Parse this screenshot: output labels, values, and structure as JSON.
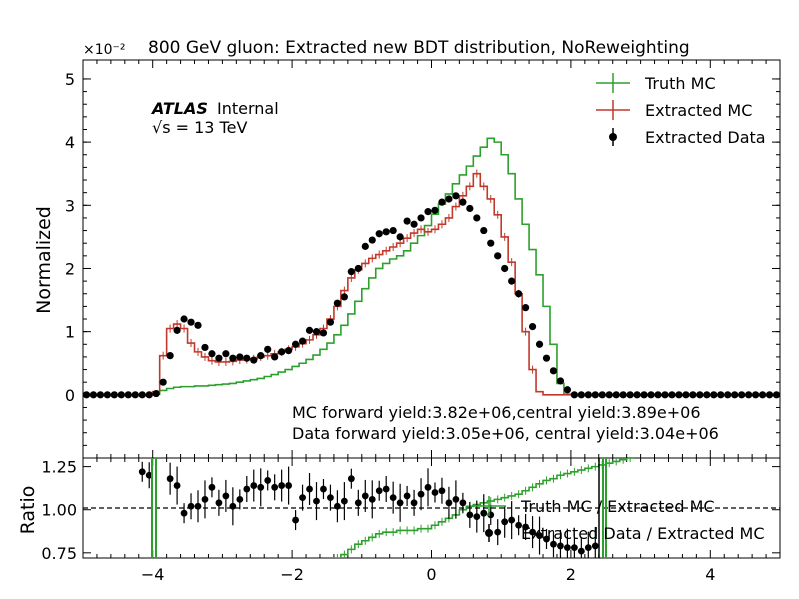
{
  "chart_data": [
    {
      "type": "histogram",
      "title": "800 GeV gluon: Extracted new BDT distribution, NoReweighting",
      "ylabel": "Normalized",
      "y_multiplier_label": "×10⁻²",
      "xlim": [
        -5,
        5
      ],
      "ylim": [
        -1,
        5.3
      ],
      "bin_edges": [
        -5.0,
        -4.9,
        -4.8,
        -4.7,
        -4.6,
        -4.5,
        -4.4,
        -4.3,
        -4.2,
        -4.1,
        -4.0,
        -3.9,
        -3.8,
        -3.7,
        -3.6,
        -3.5,
        -3.4,
        -3.3,
        -3.2,
        -3.1,
        -3.0,
        -2.9,
        -2.8,
        -2.7,
        -2.6,
        -2.5,
        -2.4,
        -2.3,
        -2.2,
        -2.1,
        -2.0,
        -1.9,
        -1.8,
        -1.7,
        -1.6,
        -1.5,
        -1.4,
        -1.3,
        -1.2,
        -1.1,
        -1.0,
        -0.9,
        -0.8,
        -0.7,
        -0.6,
        -0.5,
        -0.4,
        -0.3,
        -0.2,
        -0.1,
        0.0,
        0.1,
        0.2,
        0.3,
        0.4,
        0.5,
        0.6,
        0.7,
        0.8,
        0.9,
        1.0,
        1.1,
        1.2,
        1.3,
        1.4,
        1.5,
        1.6,
        1.7,
        1.8,
        1.9,
        2.0,
        2.1,
        2.2,
        2.3,
        2.4,
        2.5,
        2.6,
        2.7,
        2.8,
        2.9,
        3.0,
        3.1,
        3.2,
        3.3,
        3.4,
        3.5,
        3.6,
        3.7,
        3.8,
        3.9,
        4.0,
        4.1,
        4.2,
        4.3,
        4.4,
        4.5,
        4.6,
        4.7,
        4.8,
        4.9,
        5.0
      ],
      "series": [
        {
          "name": "Truth MC",
          "color": "#2ca02c",
          "style": "step",
          "values": [
            0,
            0,
            0,
            0,
            0,
            0,
            0,
            0,
            0,
            0,
            0.01,
            0.07,
            0.1,
            0.12,
            0.13,
            0.13,
            0.14,
            0.14,
            0.15,
            0.16,
            0.17,
            0.18,
            0.2,
            0.22,
            0.24,
            0.26,
            0.29,
            0.32,
            0.36,
            0.4,
            0.45,
            0.5,
            0.56,
            0.63,
            0.72,
            0.82,
            0.95,
            1.1,
            1.28,
            1.48,
            1.68,
            1.85,
            2.0,
            2.08,
            2.15,
            2.2,
            2.28,
            2.4,
            2.52,
            2.68,
            2.86,
            3.02,
            3.18,
            3.34,
            3.48,
            3.62,
            3.78,
            3.92,
            4.06,
            4.0,
            3.8,
            3.5,
            3.1,
            2.7,
            2.3,
            1.9,
            1.4,
            0.8,
            0.18,
            0.01,
            0,
            0,
            0,
            0,
            0,
            0,
            0,
            0,
            0,
            0,
            0,
            0,
            0,
            0,
            0,
            0,
            0,
            0,
            0,
            0,
            0,
            0,
            0,
            0,
            0,
            0,
            0,
            0,
            0,
            0
          ]
        },
        {
          "name": "Extracted MC",
          "color": "#c0392b",
          "style": "step",
          "values": [
            0,
            0,
            0,
            0,
            0,
            0,
            0,
            0,
            0,
            0,
            0.05,
            0.62,
            1.05,
            1.12,
            1.05,
            0.82,
            0.68,
            0.6,
            0.54,
            0.52,
            0.52,
            0.53,
            0.55,
            0.56,
            0.57,
            0.6,
            0.62,
            0.65,
            0.68,
            0.72,
            0.76,
            0.81,
            0.87,
            0.95,
            1.05,
            1.2,
            1.4,
            1.65,
            1.85,
            1.98,
            2.08,
            2.16,
            2.22,
            2.28,
            2.34,
            2.4,
            2.48,
            2.56,
            2.62,
            2.58,
            2.62,
            2.7,
            2.8,
            2.98,
            3.15,
            3.3,
            3.5,
            3.3,
            3.1,
            2.85,
            2.5,
            2.1,
            1.6,
            1.0,
            0.4,
            0.05,
            0,
            0,
            0,
            0,
            0,
            0,
            0,
            0,
            0,
            0,
            0,
            0,
            0,
            0,
            0,
            0,
            0,
            0,
            0,
            0,
            0,
            0,
            0,
            0,
            0,
            0,
            0,
            0,
            0,
            0,
            0,
            0,
            0,
            0
          ]
        },
        {
          "name": "Extracted Data",
          "color": "#000000",
          "style": "points",
          "values": [
            0,
            0,
            0,
            0,
            0,
            0,
            0,
            0,
            0,
            0,
            0.02,
            0.2,
            0.62,
            1.02,
            1.2,
            1.15,
            1.1,
            0.75,
            0.65,
            0.58,
            0.65,
            0.58,
            0.6,
            0.58,
            0.55,
            0.62,
            0.72,
            0.6,
            0.68,
            0.7,
            0.8,
            0.85,
            1.02,
            1.0,
            0.98,
            1.15,
            1.45,
            1.55,
            1.95,
            2.0,
            2.35,
            2.45,
            2.55,
            2.58,
            2.6,
            2.5,
            2.75,
            2.7,
            2.8,
            2.9,
            2.92,
            3.05,
            3.1,
            3.15,
            3.05,
            2.95,
            2.8,
            2.6,
            2.4,
            2.2,
            2.0,
            1.8,
            1.6,
            1.38,
            1.08,
            0.8,
            0.58,
            0.38,
            0.22,
            0.08,
            0,
            0,
            0,
            0,
            0,
            0,
            0,
            0,
            0,
            0,
            0,
            0,
            0,
            0,
            0,
            0,
            0,
            0,
            0,
            0,
            0,
            0,
            0,
            0,
            0,
            0,
            0,
            0,
            0,
            0
          ]
        }
      ],
      "legend": [
        "Truth MC",
        "Extracted MC",
        "Extracted Data"
      ],
      "legend_position": "top-right",
      "annotations": {
        "experiment": "ATLAS",
        "status": "Internal",
        "energy": "√s = 13 TeV",
        "mc_yield": "MC forward yield:3.82e+06,central yield:3.89e+06",
        "data_yield": "Data forward yield:3.05e+06, central yield:3.04e+06"
      },
      "yticks": [
        "0",
        "1",
        "2",
        "3",
        "4",
        "5"
      ]
    },
    {
      "type": "scatter",
      "ylabel": "Ratio",
      "xlim": [
        -5,
        5
      ],
      "ylim": [
        0.72,
        1.3
      ],
      "xticks": [
        "−4",
        "−2",
        "0",
        "2",
        "4"
      ],
      "yticks": [
        "0.75",
        "1.00",
        "1.25"
      ],
      "reference_line": 1.0,
      "series": [
        {
          "name": "Truth MC / Extracted MC",
          "color": "#2ca02c",
          "style": "step",
          "x_start": -1.5,
          "bin_width": 0.1,
          "values": [
            0.69,
            0.72,
            0.74,
            0.77,
            0.8,
            0.82,
            0.84,
            0.86,
            0.87,
            0.87,
            0.88,
            0.88,
            0.88,
            0.89,
            0.89,
            0.91,
            0.93,
            0.95,
            0.97,
            1.0,
            1.02,
            1.03,
            1.04,
            1.05,
            1.06,
            1.07,
            1.08,
            1.09,
            1.11,
            1.13,
            1.15,
            1.17,
            1.18,
            1.2,
            1.21,
            1.22,
            1.23,
            1.24,
            1.25,
            1.26,
            1.27,
            1.28,
            1.29,
            1.3
          ]
        },
        {
          "name": "Extracted Data / Extracted MC",
          "color": "#000000",
          "style": "points",
          "x": [
            -4.15,
            -4.05,
            -3.75,
            -3.65,
            -3.55,
            -3.45,
            -3.35,
            -3.25,
            -3.15,
            -3.05,
            -2.95,
            -2.85,
            -2.75,
            -2.65,
            -2.55,
            -2.45,
            -2.35,
            -2.25,
            -2.15,
            -2.05,
            -1.95,
            -1.85,
            -1.75,
            -1.65,
            -1.55,
            -1.45,
            -1.35,
            -1.25,
            -1.15,
            -1.05,
            -0.95,
            -0.85,
            -0.75,
            -0.65,
            -0.55,
            -0.45,
            -0.35,
            -0.25,
            -0.15,
            -0.05,
            0.05,
            0.15,
            0.25,
            0.35,
            0.45,
            0.55,
            0.65,
            0.75,
            0.85,
            0.95,
            1.05,
            1.15,
            1.25,
            1.35,
            1.45,
            1.55,
            1.65,
            1.75,
            1.85,
            1.95,
            2.05,
            2.15,
            2.25,
            2.35
          ],
          "values": [
            1.22,
            1.2,
            1.18,
            1.14,
            0.98,
            1.02,
            1.02,
            1.06,
            1.13,
            1.04,
            1.08,
            1.02,
            1.06,
            1.12,
            1.14,
            1.13,
            1.17,
            1.13,
            1.14,
            1.14,
            0.94,
            1.07,
            1.12,
            1.05,
            1.12,
            1.07,
            1.02,
            1.05,
            1.18,
            1.04,
            1.08,
            1.06,
            1.11,
            1.12,
            1.07,
            1.04,
            1.08,
            1.04,
            1.09,
            1.13,
            1.1,
            1.11,
            1.04,
            1.06,
            1.04,
            0.97,
            0.96,
            0.98,
            0.97,
            0.87,
            0.93,
            0.94,
            0.91,
            0.9,
            0.87,
            0.85,
            0.83,
            0.8,
            0.79,
            0.78,
            0.78,
            0.76,
            0.78,
            0.79
          ]
        }
      ],
      "legend": [
        "Truth MC / Extracted MC",
        "Extracted Data / Extracted MC"
      ],
      "legend_position": "center-right"
    }
  ]
}
